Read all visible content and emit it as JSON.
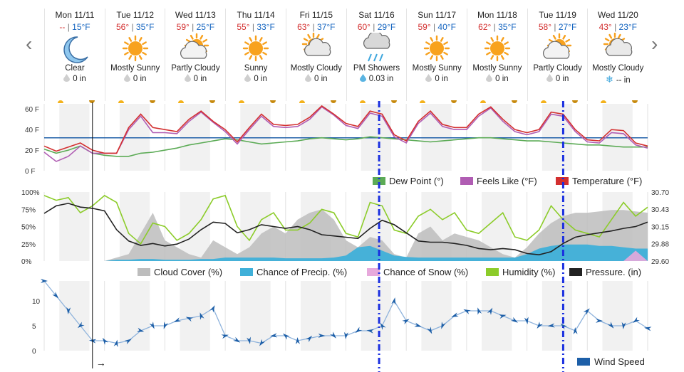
{
  "nav": {
    "prev_icon": "chevron-left-icon",
    "next_icon": "chevron-right-icon"
  },
  "days": [
    {
      "name": "Mon 11/11",
      "hi": "--",
      "lo": "15°F",
      "cond": "Clear",
      "icon": "moon-icon",
      "precip": "0 in",
      "precip_icon": "drop-icon"
    },
    {
      "name": "Tue 11/12",
      "hi": "56°",
      "lo": "35°F",
      "cond": "Mostly Sunny",
      "icon": "sun-icon",
      "precip": "0 in",
      "precip_icon": "drop-icon"
    },
    {
      "name": "Wed 11/13",
      "hi": "59°",
      "lo": "25°F",
      "cond": "Partly Cloudy",
      "icon": "sun-cloud-icon",
      "precip": "0 in",
      "precip_icon": "drop-icon"
    },
    {
      "name": "Thu 11/14",
      "hi": "55°",
      "lo": "33°F",
      "cond": "Sunny",
      "icon": "sun-icon",
      "precip": "0 in",
      "precip_icon": "drop-icon"
    },
    {
      "name": "Fri 11/15",
      "hi": "63°",
      "lo": "37°F",
      "cond": "Mostly Cloudy",
      "icon": "cloud-sun-icon",
      "precip": "0 in",
      "precip_icon": "drop-icon"
    },
    {
      "name": "Sat 11/16",
      "hi": "60°",
      "lo": "29°F",
      "cond": "PM Showers",
      "icon": "rain-cloud-icon",
      "precip": "0.03 in",
      "precip_icon": "drop-icon"
    },
    {
      "name": "Sun 11/17",
      "hi": "59°",
      "lo": "40°F",
      "cond": "Mostly Sunny",
      "icon": "sun-icon",
      "precip": "0 in",
      "precip_icon": "drop-icon"
    },
    {
      "name": "Mon 11/18",
      "hi": "62°",
      "lo": "35°F",
      "cond": "Mostly Sunny",
      "icon": "sun-icon",
      "precip": "0 in",
      "precip_icon": "drop-icon"
    },
    {
      "name": "Tue 11/19",
      "hi": "58°",
      "lo": "27°F",
      "cond": "Partly Cloudy",
      "icon": "sun-cloud-icon",
      "precip": "0 in",
      "precip_icon": "drop-icon"
    },
    {
      "name": "Wed 11/20",
      "hi": "43°",
      "lo": "23°F",
      "cond": "Mostly Cloudy",
      "icon": "cloud-sun-icon",
      "precip": "-- in",
      "precip_icon": "snowflake-icon"
    }
  ],
  "colors": {
    "temperature": "#d32f2f",
    "feels_like": "#b05db3",
    "dew_point": "#5cab56",
    "freezing_line": "#1f5fa8",
    "cloud_cover": "#bdbdbd",
    "precip_chance": "#3fb0d9",
    "snow_chance": "#e7a9dc",
    "humidity": "#8ccc2a",
    "pressure": "#222222",
    "wind": "#1d5fa8",
    "marker": "#1a2fe0"
  },
  "chart_data": [
    {
      "type": "line",
      "y_ticks": [
        "60 F",
        "40 F",
        "20 F",
        "0 F"
      ],
      "ylim": [
        0,
        65
      ],
      "freezing_line": 32,
      "legend": [
        "Dew Point (°)",
        "Feels Like (°F)",
        "Temperature (°F)"
      ],
      "x_days": [
        0,
        0.2,
        0.4,
        0.6,
        0.8,
        1.0,
        1.2,
        1.4,
        1.6,
        1.8,
        2.0,
        2.2,
        2.4,
        2.6,
        2.8,
        3.0,
        3.2,
        3.4,
        3.6,
        3.8,
        4.0,
        4.2,
        4.4,
        4.6,
        4.8,
        5.0,
        5.2,
        5.4,
        5.6,
        5.8,
        6.0,
        6.2,
        6.4,
        6.6,
        6.8,
        7.0,
        7.2,
        7.4,
        7.6,
        7.8,
        8.0,
        8.2,
        8.4,
        8.6,
        8.8,
        9.0,
        9.2,
        9.4,
        9.6,
        9.8,
        10.0
      ],
      "series": [
        {
          "name": "Temperature (°F)",
          "key": "temperature",
          "values": [
            24,
            19,
            23,
            27,
            20,
            17,
            17,
            42,
            55,
            42,
            40,
            38,
            50,
            58,
            48,
            40,
            28,
            42,
            55,
            45,
            44,
            45,
            52,
            63,
            55,
            46,
            43,
            58,
            55,
            35,
            29,
            48,
            58,
            45,
            42,
            42,
            55,
            62,
            50,
            40,
            37,
            40,
            57,
            55,
            40,
            30,
            29,
            40,
            39,
            27,
            24
          ]
        },
        {
          "name": "Feels Like (°F)",
          "key": "feels_like",
          "values": [
            18,
            9,
            14,
            24,
            17,
            17,
            17,
            40,
            53,
            37,
            37,
            36,
            48,
            57,
            47,
            38,
            26,
            40,
            53,
            43,
            42,
            43,
            50,
            62,
            54,
            44,
            41,
            56,
            53,
            33,
            27,
            46,
            56,
            43,
            40,
            40,
            53,
            61,
            48,
            38,
            35,
            38,
            55,
            53,
            38,
            28,
            27,
            37,
            36,
            25,
            22
          ]
        },
        {
          "name": "Dew Point (°)",
          "key": "dew_point",
          "values": [
            21,
            17,
            20,
            24,
            17,
            15,
            14,
            14,
            17,
            18,
            20,
            22,
            25,
            27,
            29,
            31,
            30,
            28,
            26,
            27,
            28,
            29,
            31,
            32,
            31,
            30,
            31,
            33,
            32,
            31,
            30,
            29,
            28,
            29,
            30,
            31,
            32,
            32,
            31,
            30,
            29,
            29,
            28,
            27,
            26,
            25,
            25,
            24,
            23,
            23,
            23
          ]
        }
      ]
    },
    {
      "type": "area",
      "y_ticks_left": [
        "100%",
        "75%",
        "50%",
        "25%",
        "0%"
      ],
      "y_ticks_right": [
        "30.70",
        "30.43",
        "30.15",
        "29.88",
        "29.60"
      ],
      "ylim": [
        0,
        100
      ],
      "y2lim": [
        29.6,
        30.7
      ],
      "legend": [
        "Cloud Cover (%)",
        "Chance of Precip. (%)",
        "Chance of Snow (%)",
        "Humidity (%)",
        "Pressure. (in)"
      ],
      "x_days": [
        0,
        0.2,
        0.4,
        0.6,
        0.8,
        1.0,
        1.2,
        1.4,
        1.6,
        1.8,
        2.0,
        2.2,
        2.4,
        2.6,
        2.8,
        3.0,
        3.2,
        3.4,
        3.6,
        3.8,
        4.0,
        4.2,
        4.4,
        4.6,
        4.8,
        5.0,
        5.2,
        5.4,
        5.6,
        5.8,
        6.0,
        6.2,
        6.4,
        6.6,
        6.8,
        7.0,
        7.2,
        7.4,
        7.6,
        7.8,
        8.0,
        8.2,
        8.4,
        8.6,
        8.8,
        9.0,
        9.2,
        9.4,
        9.6,
        9.8,
        10.0
      ],
      "series": [
        {
          "name": "Cloud Cover (%)",
          "key": "cloud_cover",
          "values": [
            0,
            0,
            0,
            0,
            0,
            0,
            5,
            10,
            40,
            70,
            30,
            20,
            10,
            5,
            30,
            20,
            10,
            20,
            40,
            50,
            40,
            60,
            70,
            75,
            60,
            30,
            20,
            35,
            30,
            10,
            5,
            40,
            50,
            30,
            40,
            35,
            30,
            20,
            10,
            5,
            20,
            40,
            55,
            65,
            70,
            70,
            72,
            74,
            74,
            72,
            70
          ]
        },
        {
          "name": "Chance of Precip. (%)",
          "key": "precip_chance",
          "values": [
            0,
            0,
            0,
            0,
            0,
            0,
            2,
            2,
            3,
            3,
            2,
            2,
            2,
            3,
            3,
            5,
            5,
            5,
            5,
            5,
            4,
            4,
            4,
            4,
            5,
            8,
            20,
            22,
            15,
            8,
            6,
            5,
            5,
            5,
            5,
            5,
            5,
            5,
            5,
            5,
            10,
            18,
            22,
            24,
            24,
            24,
            22,
            22,
            20,
            18,
            18
          ]
        },
        {
          "name": "Chance of Snow (%)",
          "key": "snow_chance",
          "values": [
            0,
            0,
            0,
            0,
            0,
            0,
            0,
            0,
            0,
            0,
            0,
            0,
            0,
            0,
            0,
            0,
            0,
            0,
            0,
            0,
            0,
            0,
            0,
            0,
            0,
            0,
            0,
            0,
            0,
            0,
            0,
            0,
            0,
            0,
            0,
            0,
            0,
            0,
            0,
            0,
            0,
            0,
            0,
            0,
            0,
            0,
            0,
            0,
            0,
            15,
            0
          ]
        },
        {
          "name": "Humidity (%)",
          "key": "humidity",
          "values": [
            95,
            88,
            92,
            70,
            80,
            95,
            85,
            40,
            25,
            55,
            50,
            30,
            40,
            60,
            90,
            95,
            50,
            30,
            60,
            70,
            45,
            45,
            55,
            75,
            70,
            40,
            35,
            85,
            80,
            45,
            40,
            65,
            75,
            60,
            70,
            45,
            40,
            55,
            70,
            35,
            30,
            45,
            80,
            60,
            45,
            40,
            35,
            60,
            85,
            65,
            78
          ]
        },
        {
          "name": "Pressure. (in)",
          "key": "pressure",
          "y_axis": "right",
          "values": [
            30.36,
            30.48,
            30.52,
            30.46,
            30.44,
            30.4,
            30.1,
            29.92,
            29.85,
            29.88,
            29.84,
            29.87,
            29.95,
            30.1,
            30.22,
            30.2,
            30.05,
            30.1,
            30.18,
            30.15,
            30.12,
            30.15,
            30.1,
            30.02,
            30.0,
            29.98,
            29.96,
            30.12,
            30.25,
            30.18,
            30.05,
            29.92,
            29.9,
            29.9,
            29.88,
            29.85,
            29.8,
            29.78,
            29.8,
            29.78,
            29.72,
            29.7,
            29.75,
            29.88,
            29.98,
            30.02,
            30.05,
            30.08,
            30.12,
            30.15,
            30.22
          ]
        }
      ]
    },
    {
      "type": "line",
      "y_ticks": [
        "10",
        "5",
        "0"
      ],
      "ylim": [
        0,
        14
      ],
      "legend": [
        "Wind Speed"
      ],
      "x_days": [
        0,
        0.2,
        0.4,
        0.6,
        0.8,
        1.0,
        1.2,
        1.4,
        1.6,
        1.8,
        2.0,
        2.2,
        2.4,
        2.6,
        2.8,
        3.0,
        3.2,
        3.4,
        3.6,
        3.8,
        4.0,
        4.2,
        4.4,
        4.6,
        4.8,
        5.0,
        5.2,
        5.4,
        5.6,
        5.8,
        6.0,
        6.2,
        6.4,
        6.6,
        6.8,
        7.0,
        7.2,
        7.4,
        7.6,
        7.8,
        8.0,
        8.2,
        8.4,
        8.6,
        8.8,
        9.0,
        9.2,
        9.4,
        9.6,
        9.8,
        10.0
      ],
      "series": [
        {
          "name": "Wind Speed",
          "key": "wind",
          "values": [
            14,
            11,
            8,
            5,
            2,
            2,
            1.5,
            2,
            4,
            5,
            5,
            6,
            6.5,
            7,
            8.5,
            3,
            2,
            2,
            1.5,
            3,
            3,
            2,
            2.5,
            3,
            3,
            3,
            4,
            4,
            5,
            10,
            6,
            5,
            4,
            5,
            7,
            8,
            8,
            8,
            7,
            6,
            6,
            5,
            5,
            5,
            4,
            8,
            6,
            5,
            5,
            6,
            4.5
          ]
        }
      ]
    }
  ],
  "overlay": {
    "current_time_day": 0.8,
    "markers_day": [
      5.55,
      8.6
    ],
    "time_arrow": "→"
  }
}
